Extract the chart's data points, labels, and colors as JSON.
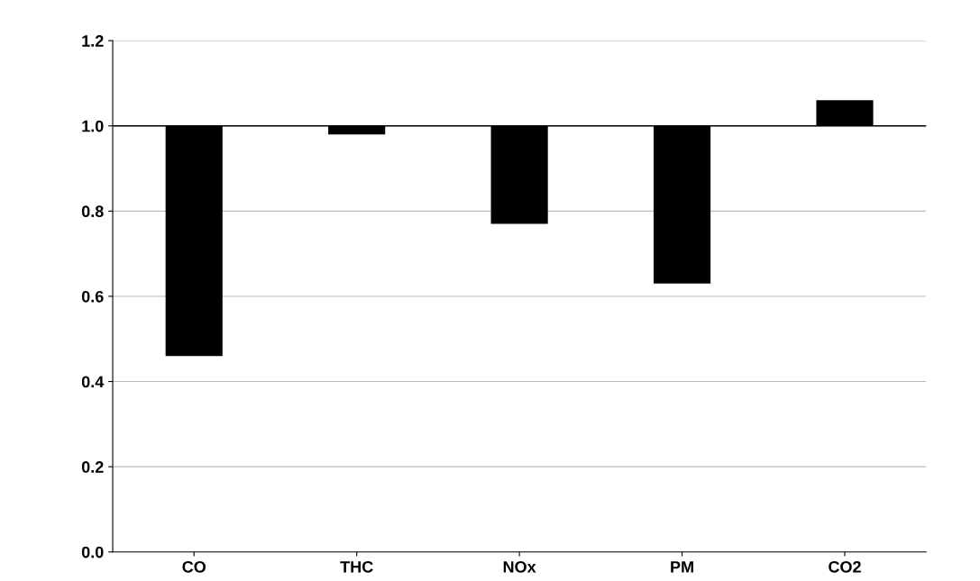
{
  "chart_data": {
    "type": "bar",
    "categories": [
      "CO",
      "THC",
      "NOx",
      "PM",
      "CO2"
    ],
    "values": [
      -0.54,
      -0.02,
      -0.23,
      -0.37,
      0.06
    ],
    "base": [
      1,
      1,
      1,
      1,
      1
    ],
    "color": "#000000",
    "ylim": [
      0,
      1.2
    ],
    "yticks": [
      {
        "value": 0,
        "label": "0.0"
      },
      {
        "value": 0.2,
        "label": "0.2"
      },
      {
        "value": 0.4,
        "label": "0.4"
      },
      {
        "value": 0.6,
        "label": "0.6"
      },
      {
        "value": 0.8,
        "label": "0.8"
      },
      {
        "value": 1,
        "label": "1.0"
      },
      {
        "value": 1.2,
        "label": "1.2"
      }
    ],
    "grid": "y",
    "ref_lines": [
      {
        "axis": "y",
        "value": 1,
        "color": "#000000"
      }
    ]
  }
}
